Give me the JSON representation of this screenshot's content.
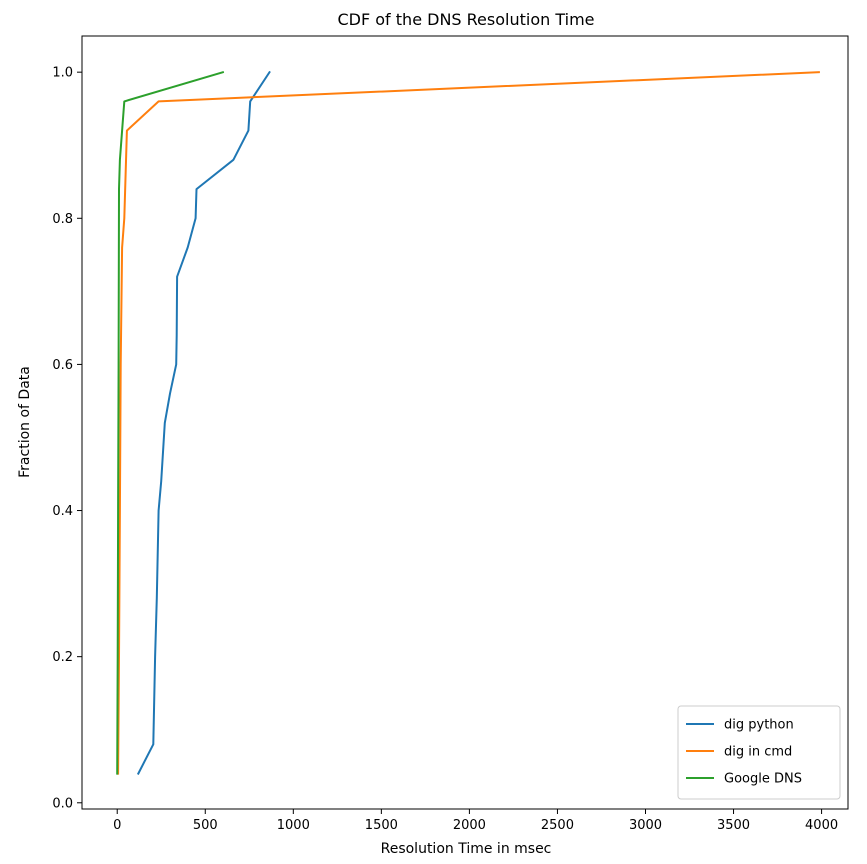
{
  "chart_data": {
    "type": "line",
    "title": "CDF of the DNS Resolution Time",
    "xlabel": "Resolution Time in msec",
    "ylabel": "Fraction of Data",
    "xlim": [
      -200,
      4150
    ],
    "ylim": [
      -0.0085,
      1.0495
    ],
    "xticks": [
      0,
      500,
      1000,
      1500,
      2000,
      2500,
      3000,
      3500,
      4000
    ],
    "yticks": [
      0.0,
      0.2,
      0.4,
      0.6,
      0.8,
      1.0
    ],
    "xtick_labels": [
      "0",
      "500",
      "1000",
      "1500",
      "2000",
      "2500",
      "3000",
      "3500",
      "4000"
    ],
    "ytick_labels": [
      "0.0",
      "0.2",
      "0.4",
      "0.6",
      "0.8",
      "1.0"
    ],
    "grid": false,
    "legend": "lower-right",
    "series": [
      {
        "name": "dig python",
        "color": "#1f77b4",
        "points": [
          [
            120,
            0.04
          ],
          [
            205,
            0.08
          ],
          [
            215,
            0.2
          ],
          [
            225,
            0.28
          ],
          [
            228,
            0.32
          ],
          [
            235,
            0.4
          ],
          [
            250,
            0.44
          ],
          [
            270,
            0.52
          ],
          [
            300,
            0.56
          ],
          [
            335,
            0.6
          ],
          [
            338,
            0.64
          ],
          [
            340,
            0.72
          ],
          [
            400,
            0.76
          ],
          [
            445,
            0.8
          ],
          [
            450,
            0.84
          ],
          [
            660,
            0.88
          ],
          [
            745,
            0.92
          ],
          [
            755,
            0.96
          ],
          [
            865,
            1.0
          ]
        ]
      },
      {
        "name": "dig in cmd",
        "color": "#ff7f0e",
        "points": [
          [
            5,
            0.04
          ],
          [
            10,
            0.2
          ],
          [
            15,
            0.4
          ],
          [
            20,
            0.6
          ],
          [
            28,
            0.76
          ],
          [
            40,
            0.8
          ],
          [
            55,
            0.92
          ],
          [
            235,
            0.96
          ],
          [
            3985,
            1.0
          ]
        ]
      },
      {
        "name": "Google DNS",
        "color": "#2ca02c",
        "points": [
          [
            0,
            0.04
          ],
          [
            3,
            0.2
          ],
          [
            5,
            0.4
          ],
          [
            8,
            0.6
          ],
          [
            10,
            0.84
          ],
          [
            15,
            0.88
          ],
          [
            40,
            0.96
          ],
          [
            600,
            1.0
          ]
        ]
      }
    ]
  }
}
